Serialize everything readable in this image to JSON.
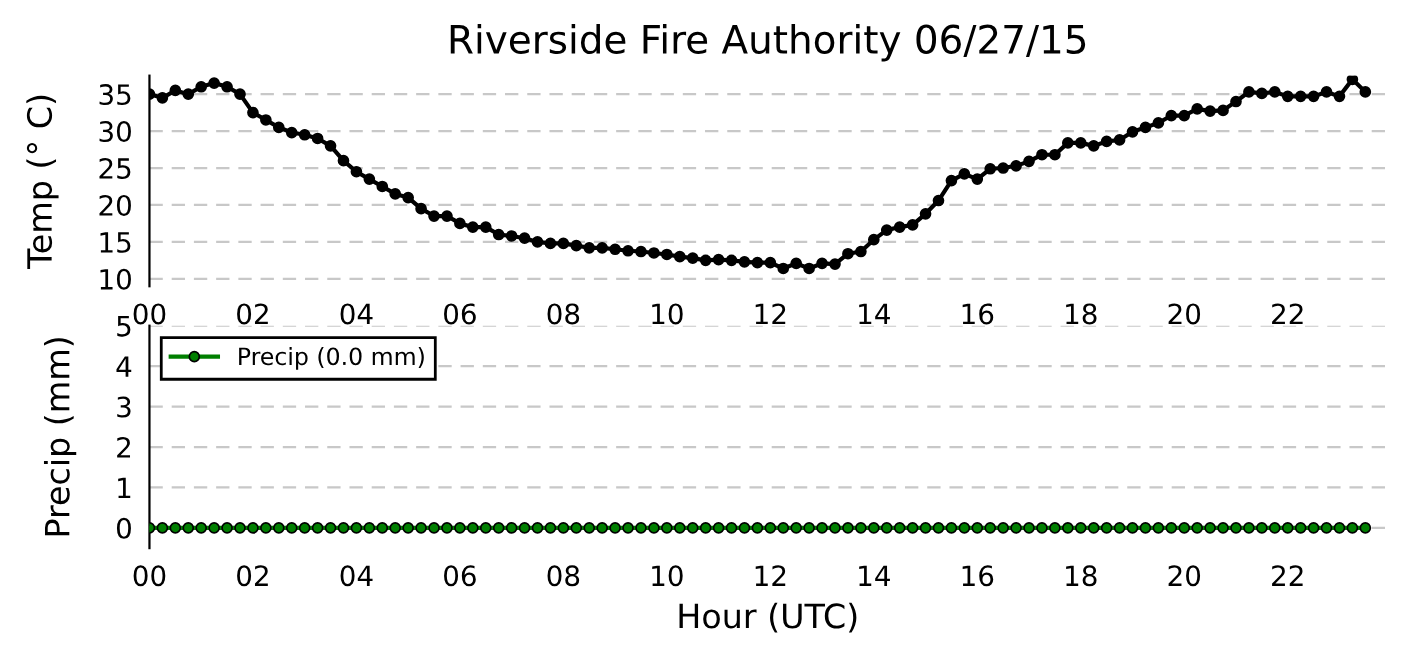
{
  "chart_data": [
    {
      "type": "line",
      "title": "Riverside Fire Authority 06/27/15",
      "ylabel": "Temp (° C)",
      "x": [
        0,
        0.25,
        0.5,
        0.75,
        1,
        1.25,
        1.5,
        1.75,
        2,
        2.25,
        2.5,
        2.75,
        3,
        3.25,
        3.5,
        3.75,
        4,
        4.25,
        4.5,
        4.75,
        5,
        5.25,
        5.5,
        5.75,
        6,
        6.25,
        6.5,
        6.75,
        7,
        7.25,
        7.5,
        7.75,
        8,
        8.25,
        8.5,
        8.75,
        9,
        9.25,
        9.5,
        9.75,
        10,
        10.25,
        10.5,
        10.75,
        11,
        11.25,
        11.5,
        11.75,
        12,
        12.25,
        12.5,
        12.75,
        13,
        13.25,
        13.5,
        13.75,
        14,
        14.25,
        14.5,
        14.75,
        15,
        15.25,
        15.5,
        15.75,
        16,
        16.25,
        16.5,
        16.75,
        17,
        17.25,
        17.5,
        17.75,
        18,
        18.25,
        18.5,
        18.75,
        19,
        19.25,
        19.5,
        19.75,
        20,
        20.25,
        20.5,
        20.75,
        21,
        21.25,
        21.5,
        21.75,
        22,
        22.25,
        22.5,
        22.75,
        23,
        23.25,
        23.5
      ],
      "series": [
        {
          "color": "#000000",
          "values": [
            35,
            34.5,
            35.5,
            35,
            36,
            36.5,
            36,
            35,
            32.5,
            31.5,
            30.5,
            29.8,
            29.5,
            29,
            28,
            26,
            24.5,
            23.5,
            22.5,
            21.5,
            21,
            19.5,
            18.5,
            18.5,
            17.5,
            17,
            17,
            16,
            15.8,
            15.5,
            15,
            14.8,
            14.8,
            14.5,
            14.2,
            14.2,
            14,
            13.8,
            13.7,
            13.5,
            13.3,
            13,
            12.8,
            12.5,
            12.6,
            12.5,
            12.3,
            12.2,
            12.2,
            11.4,
            12.1,
            11.4,
            12.1,
            12,
            13.4,
            13.7,
            15.3,
            16.6,
            17,
            17.3,
            18.8,
            20.6,
            23.3,
            24.2,
            23.5,
            24.9,
            25,
            25.3,
            25.9,
            26.8,
            26.8,
            28.4,
            28.4,
            28,
            28.6,
            28.8,
            29.9,
            30.5,
            31.1,
            32.1,
            32.1,
            33,
            32.7,
            32.8,
            34,
            35.3,
            35.1,
            35.3,
            34.7,
            34.7,
            34.7,
            35.3,
            34.7,
            37,
            35.3
          ]
        }
      ],
      "xlim": [
        0,
        23.9
      ],
      "ylim": [
        9,
        37.5
      ],
      "xticks": [
        {
          "value": 0,
          "label": "00"
        },
        {
          "value": 2,
          "label": "02"
        },
        {
          "value": 4,
          "label": "04"
        },
        {
          "value": 6,
          "label": "06"
        },
        {
          "value": 8,
          "label": "08"
        },
        {
          "value": 10,
          "label": "10"
        },
        {
          "value": 12,
          "label": "12"
        },
        {
          "value": 14,
          "label": "14"
        },
        {
          "value": 16,
          "label": "16"
        },
        {
          "value": 18,
          "label": "18"
        },
        {
          "value": 20,
          "label": "20"
        },
        {
          "value": 22,
          "label": "22"
        }
      ],
      "yticks": [
        10,
        15,
        20,
        25,
        30,
        35
      ],
      "grid": "y",
      "marker": "circle",
      "line_style": "solid"
    },
    {
      "type": "line",
      "xlabel": "Hour (UTC)",
      "ylabel": "Precip (mm)",
      "x": [
        0,
        0.25,
        0.5,
        0.75,
        1,
        1.25,
        1.5,
        1.75,
        2,
        2.25,
        2.5,
        2.75,
        3,
        3.25,
        3.5,
        3.75,
        4,
        4.25,
        4.5,
        4.75,
        5,
        5.25,
        5.5,
        5.75,
        6,
        6.25,
        6.5,
        6.75,
        7,
        7.25,
        7.5,
        7.75,
        8,
        8.25,
        8.5,
        8.75,
        9,
        9.25,
        9.5,
        9.75,
        10,
        10.25,
        10.5,
        10.75,
        11,
        11.25,
        11.5,
        11.75,
        12,
        12.25,
        12.5,
        12.75,
        13,
        13.25,
        13.5,
        13.75,
        14,
        14.25,
        14.5,
        14.75,
        15,
        15.25,
        15.5,
        15.75,
        16,
        16.25,
        16.5,
        16.75,
        17,
        17.25,
        17.5,
        17.75,
        18,
        18.25,
        18.5,
        18.75,
        19,
        19.25,
        19.5,
        19.75,
        20,
        20.25,
        20.5,
        20.75,
        21,
        21.25,
        21.5,
        21.75,
        22,
        22.25,
        22.5,
        22.75,
        23,
        23.25,
        23.5
      ],
      "series": [
        {
          "name": "Precip (0.0 mm)",
          "color": "#007f00",
          "values": [
            0,
            0,
            0,
            0,
            0,
            0,
            0,
            0,
            0,
            0,
            0,
            0,
            0,
            0,
            0,
            0,
            0,
            0,
            0,
            0,
            0,
            0,
            0,
            0,
            0,
            0,
            0,
            0,
            0,
            0,
            0,
            0,
            0,
            0,
            0,
            0,
            0,
            0,
            0,
            0,
            0,
            0,
            0,
            0,
            0,
            0,
            0,
            0,
            0,
            0,
            0,
            0,
            0,
            0,
            0,
            0,
            0,
            0,
            0,
            0,
            0,
            0,
            0,
            0,
            0,
            0,
            0,
            0,
            0,
            0,
            0,
            0,
            0,
            0,
            0,
            0,
            0,
            0,
            0,
            0,
            0,
            0,
            0,
            0,
            0,
            0,
            0,
            0,
            0,
            0,
            0,
            0,
            0,
            0,
            0
          ]
        }
      ],
      "xlim": [
        0,
        23.9
      ],
      "ylim": [
        -0.5,
        5
      ],
      "xticks": [
        {
          "value": 0,
          "label": "00"
        },
        {
          "value": 2,
          "label": "02"
        },
        {
          "value": 4,
          "label": "04"
        },
        {
          "value": 6,
          "label": "06"
        },
        {
          "value": 8,
          "label": "08"
        },
        {
          "value": 10,
          "label": "10"
        },
        {
          "value": 12,
          "label": "12"
        },
        {
          "value": 14,
          "label": "14"
        },
        {
          "value": 16,
          "label": "16"
        },
        {
          "value": 18,
          "label": "18"
        },
        {
          "value": 20,
          "label": "20"
        },
        {
          "value": 22,
          "label": "22"
        }
      ],
      "yticks": [
        0,
        1,
        2,
        3,
        4,
        5
      ],
      "grid": "y",
      "legend": "top left",
      "marker": "circle",
      "line_style": "solid"
    }
  ]
}
